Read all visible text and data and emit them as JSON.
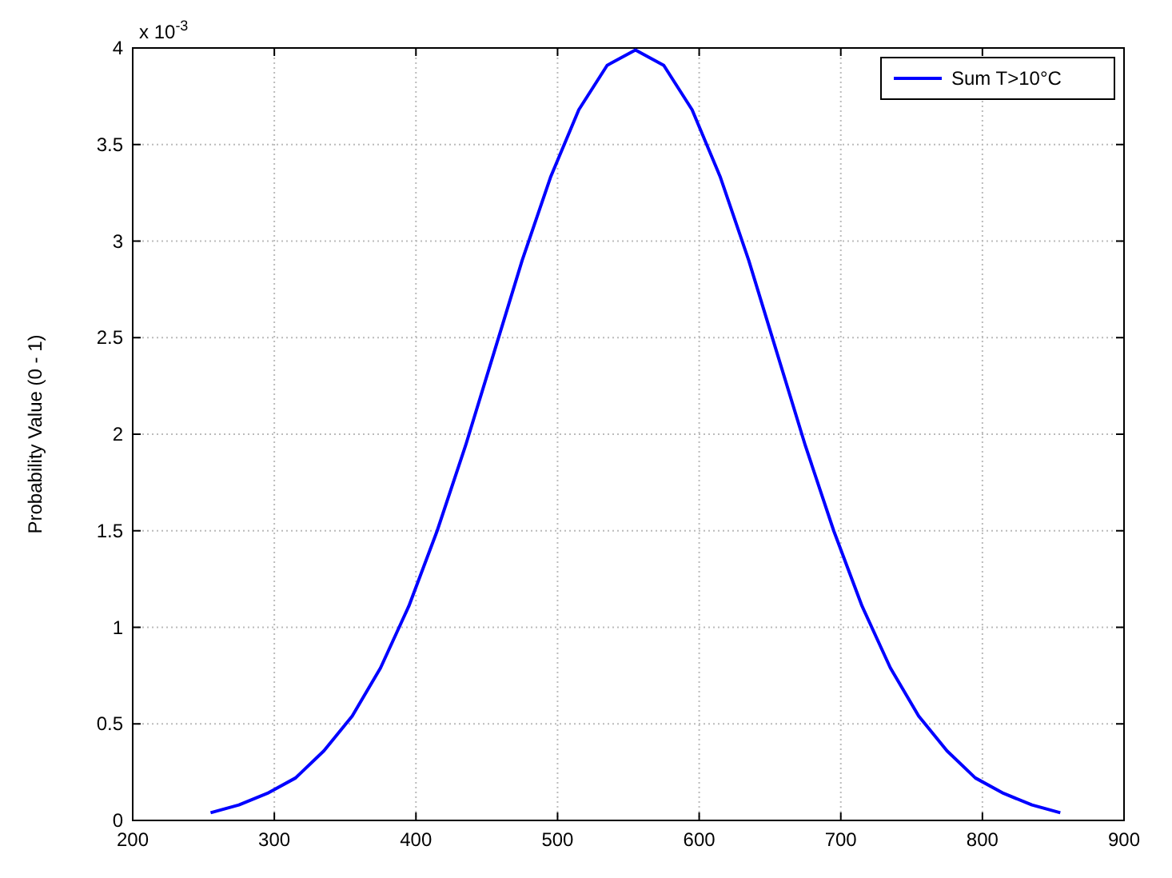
{
  "chart_data": {
    "type": "line",
    "ylabel": "Probability Value (0 - 1)",
    "annotations": [
      "x 10$^{-3}$"
    ],
    "x": [
      255,
      275,
      295,
      315,
      335,
      355,
      375,
      395,
      415,
      435,
      455,
      475,
      495,
      515,
      535,
      555,
      575,
      595,
      615,
      635,
      655,
      675,
      695,
      715,
      735,
      755,
      775,
      795,
      815,
      835,
      855
    ],
    "series": [
      {
        "name": "Sum T>10°C",
        "color": "#0000ff",
        "values": [
          0.04,
          0.08,
          0.14,
          0.22,
          0.36,
          0.54,
          0.79,
          1.11,
          1.5,
          1.94,
          2.42,
          2.9,
          3.33,
          3.68,
          3.91,
          3.99,
          3.91,
          3.68,
          3.33,
          2.9,
          2.42,
          1.94,
          1.5,
          1.11,
          0.79,
          0.54,
          0.36,
          0.22,
          0.14,
          0.08,
          0.04
        ]
      }
    ],
    "xlim": [
      200,
      900
    ],
    "xticks": [
      200,
      300,
      400,
      500,
      600,
      700,
      800,
      900
    ],
    "ylim": [
      0,
      4
    ],
    "yticks": [
      0,
      0.5,
      1,
      1.5,
      2,
      2.5,
      3,
      3.5,
      4
    ],
    "grid": true,
    "legend": "top right",
    "marker": "none",
    "line_style": "solid"
  }
}
